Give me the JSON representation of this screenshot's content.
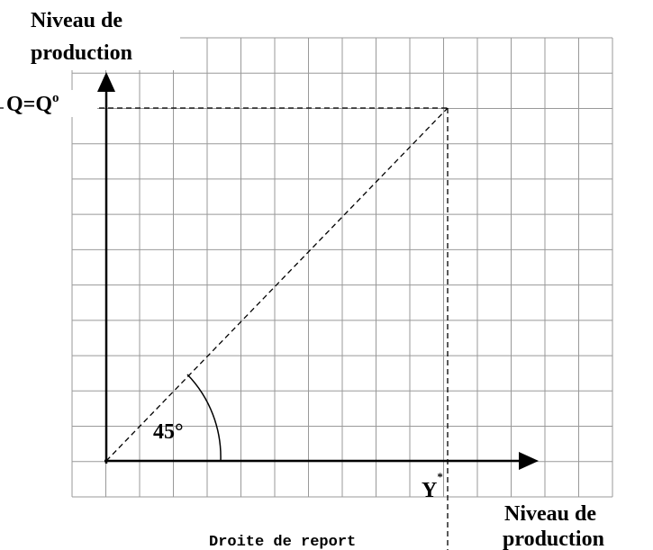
{
  "y_axis_label": {
    "line1": "Niveau de",
    "line2": "production"
  },
  "x_axis_label": {
    "line1": "Niveau de",
    "line2": "production"
  },
  "q_label": {
    "text": "Q=Q",
    "superscript": "o"
  },
  "angle_label": "45°",
  "y_label": {
    "text": "Y",
    "superscript": "*"
  },
  "report_line_label": "Droite de report"
}
